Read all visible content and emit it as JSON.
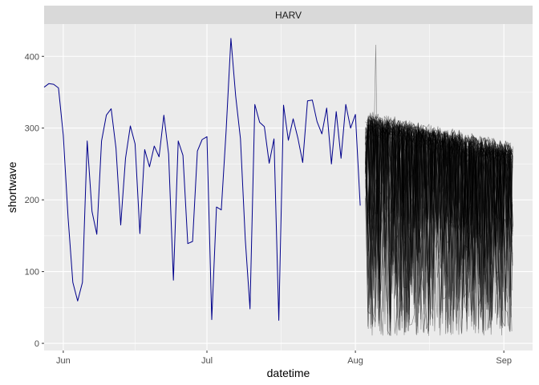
{
  "chart_data": {
    "type": "line",
    "facet": "HARV",
    "xlabel": "datetime",
    "ylabel": "shortwave",
    "ylim": [
      -10,
      445
    ],
    "xlim": [
      "2023-05-28",
      "2023-09-07"
    ],
    "x_ticks": [
      {
        "label": "Jun",
        "date": "2023-06-01"
      },
      {
        "label": "Jul",
        "date": "2023-07-01"
      },
      {
        "label": "Aug",
        "date": "2023-08-01"
      },
      {
        "label": "Sep",
        "date": "2023-09-01"
      }
    ],
    "y_ticks": [
      0,
      100,
      200,
      300,
      400
    ],
    "grid": true,
    "observed": {
      "color": "#00008B",
      "start_date": "2023-05-28",
      "values": [
        357,
        362,
        361,
        356,
        290,
        175,
        85,
        59,
        85,
        282,
        184,
        152,
        282,
        318,
        327,
        272,
        165,
        258,
        303,
        278,
        153,
        270,
        246,
        275,
        260,
        318,
        264,
        88,
        282,
        262,
        139,
        142,
        268,
        284,
        288,
        33,
        190,
        186,
        296,
        425,
        345,
        285,
        145,
        48,
        333,
        308,
        302,
        251,
        285,
        32,
        332,
        283,
        313,
        286,
        252,
        338,
        339,
        309,
        292,
        328,
        250,
        323,
        258,
        333,
        300,
        319,
        192
      ]
    },
    "forecast": {
      "color": "#000000",
      "start_date": "2023-08-03",
      "days": 31,
      "ensemble_members": 62
    }
  },
  "facet_strip": {
    "label": "HARV"
  }
}
